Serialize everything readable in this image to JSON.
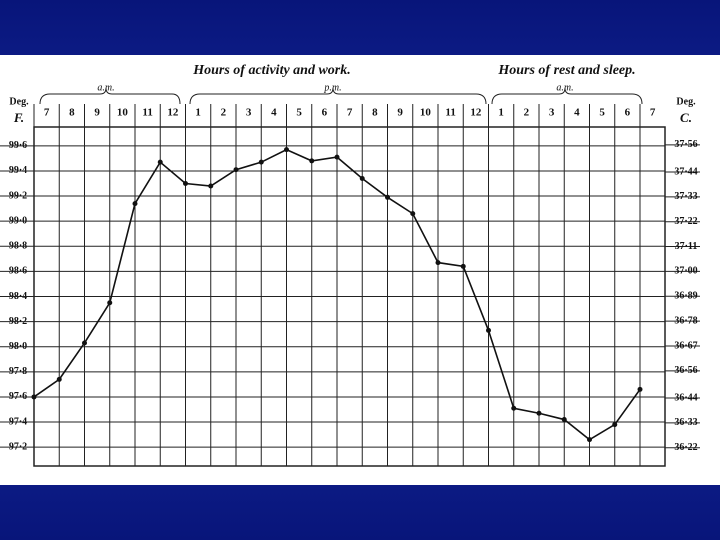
{
  "chart_data": {
    "type": "line",
    "header_left": "Hours of activity and work.",
    "header_right": "Hours of rest and sleep.",
    "periods": [
      "a.m.",
      "p.m.",
      "a.m."
    ],
    "y_unit_label": "Deg.",
    "y_label": "F.",
    "y2_unit_label": "Deg.",
    "y2_label": "C.",
    "categories": [
      "7",
      "8",
      "9",
      "10",
      "11",
      "12",
      "1",
      "2",
      "3",
      "4",
      "5",
      "6",
      "7",
      "8",
      "9",
      "10",
      "11",
      "12",
      "1",
      "2",
      "3",
      "4",
      "5",
      "6",
      "7"
    ],
    "series": [
      {
        "color": "#111111",
        "values": [
          97.6,
          97.74,
          98.03,
          98.35,
          99.14,
          99.47,
          99.3,
          99.28,
          99.41,
          99.47,
          99.57,
          99.48,
          99.51,
          99.34,
          99.19,
          99.06,
          98.67,
          98.64,
          98.13,
          97.51,
          97.47,
          97.42,
          97.26,
          97.38,
          97.66
        ]
      }
    ],
    "ylim": [
      97.05,
      99.75
    ],
    "yticks": [
      {
        "value": 99.6,
        "label": "99·6"
      },
      {
        "value": 99.4,
        "label": "99·4"
      },
      {
        "value": 99.2,
        "label": "99·2"
      },
      {
        "value": 99.0,
        "label": "99·0"
      },
      {
        "value": 98.8,
        "label": "98·8"
      },
      {
        "value": 98.6,
        "label": "98·6"
      },
      {
        "value": 98.4,
        "label": "98·4"
      },
      {
        "value": 98.2,
        "label": "98·2"
      },
      {
        "value": 98.0,
        "label": "98·0"
      },
      {
        "value": 97.8,
        "label": "97·8"
      },
      {
        "value": 97.6,
        "label": "97·6"
      },
      {
        "value": 97.4,
        "label": "97·4"
      },
      {
        "value": 97.2,
        "label": "97·2"
      }
    ],
    "y2lim": [
      36.139,
      37.639
    ],
    "y2ticks": [
      {
        "value": 37.56,
        "label": "37·56"
      },
      {
        "value": 37.44,
        "label": "37·44"
      },
      {
        "value": 37.33,
        "label": "37·33"
      },
      {
        "value": 37.22,
        "label": "37·22"
      },
      {
        "value": 37.11,
        "label": "37·11"
      },
      {
        "value": 37.0,
        "label": "37·00"
      },
      {
        "value": 36.89,
        "label": "36·89"
      },
      {
        "value": 36.78,
        "label": "36·78"
      },
      {
        "value": 36.67,
        "label": "36·67"
      },
      {
        "value": 36.56,
        "label": "36·56"
      },
      {
        "value": 36.44,
        "label": "36·44"
      },
      {
        "value": 36.33,
        "label": "36·33"
      },
      {
        "value": 36.22,
        "label": "36·22"
      }
    ],
    "grid": true
  }
}
